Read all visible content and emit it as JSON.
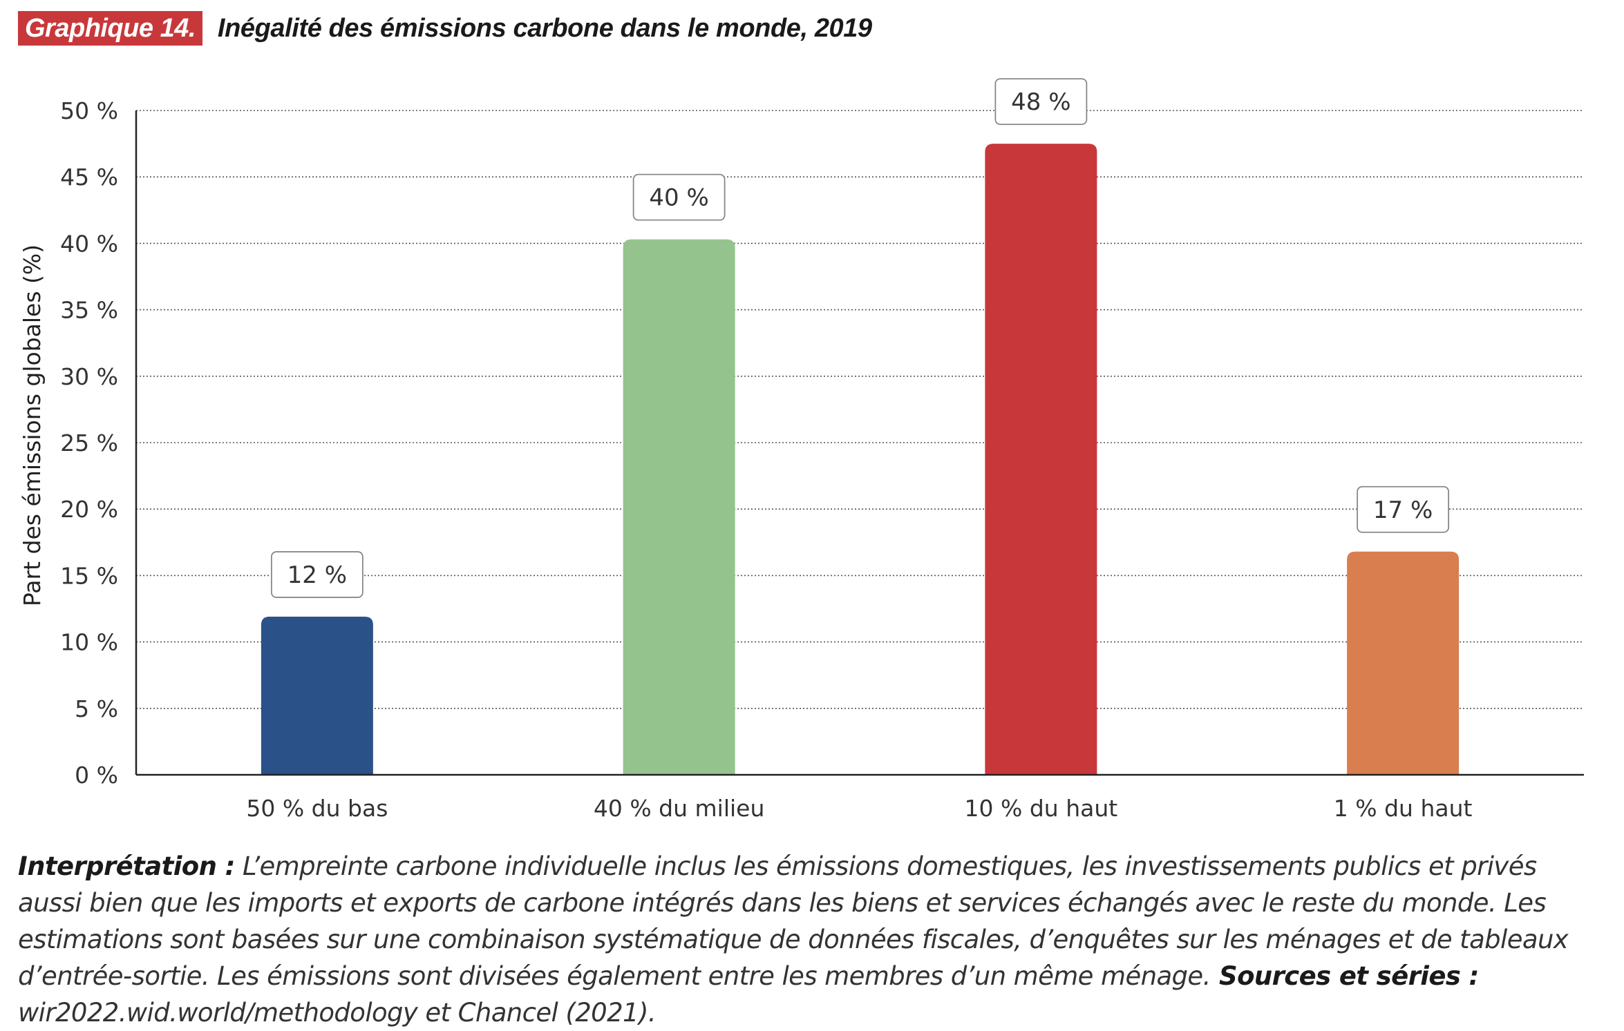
{
  "header": {
    "figure_label": "Graphique 14.",
    "title": "Inégalité des émissions carbone dans le monde, 2019"
  },
  "chart_data": {
    "type": "bar",
    "title": "Inégalité des émissions carbone dans le monde, 2019",
    "ylabel": "Part des émissions globales  (%)",
    "xlabel": "",
    "ylim": [
      0,
      50
    ],
    "yticks": [
      0,
      5,
      10,
      15,
      20,
      25,
      30,
      35,
      40,
      45,
      50
    ],
    "ytick_labels": [
      "0 %",
      "5 %",
      "10 %",
      "15 %",
      "20 %",
      "25 %",
      "30 %",
      "35 %",
      "40 %",
      "45 %",
      "50 %"
    ],
    "grid": true,
    "categories": [
      "50 % du bas",
      "40 % du milieu",
      "10 % du haut",
      "1 % du haut"
    ],
    "values": [
      12,
      40,
      48,
      17
    ],
    "value_labels": [
      "12 %",
      "40 %",
      "48 %",
      "17 %"
    ],
    "bar_values_drawn": [
      11.9,
      40.3,
      47.5,
      16.8
    ],
    "colors": [
      "#2b5288",
      "#95c38d",
      "#c8383b",
      "#d97e4f"
    ]
  },
  "note": {
    "interpretation_label": "Interprétation :",
    "interpretation_text": " L’empreinte carbone individuelle inclus les émissions domestiques, les investissements publics et privés aussi bien que les imports et exports de carbone intégrés dans les biens et services échangés avec le reste du monde. Les estimations sont basées sur une combinaison systématique de données fiscales, d’enquêtes sur les ménages et de tableaux d’entrée-sortie. Les émissions sont divisées également entre les membres d’un même ménage.",
    "sources_label": " Sources et séries :",
    "sources_text": " wir2022.wid.world/methodology et Chancel (2021)."
  }
}
